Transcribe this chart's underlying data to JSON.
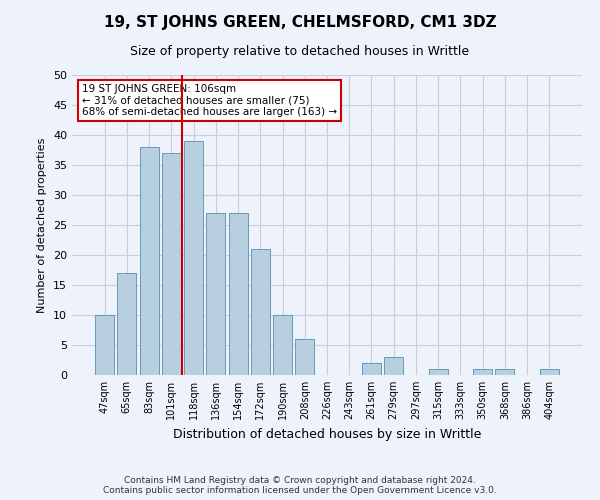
{
  "title": "19, ST JOHNS GREEN, CHELMSFORD, CM1 3DZ",
  "subtitle": "Size of property relative to detached houses in Writtle",
  "xlabel": "Distribution of detached houses by size in Writtle",
  "ylabel": "Number of detached properties",
  "categories": [
    "47sqm",
    "65sqm",
    "83sqm",
    "101sqm",
    "118sqm",
    "136sqm",
    "154sqm",
    "172sqm",
    "190sqm",
    "208sqm",
    "226sqm",
    "243sqm",
    "261sqm",
    "279sqm",
    "297sqm",
    "315sqm",
    "333sqm",
    "350sqm",
    "368sqm",
    "386sqm",
    "404sqm"
  ],
  "values": [
    10,
    17,
    38,
    37,
    39,
    27,
    27,
    21,
    10,
    6,
    0,
    0,
    2,
    3,
    0,
    1,
    0,
    1,
    1,
    0,
    1
  ],
  "bar_color": "#b8cfe0",
  "bar_edge_color": "#6699bb",
  "ylim": [
    0,
    50
  ],
  "yticks": [
    0,
    5,
    10,
    15,
    20,
    25,
    30,
    35,
    40,
    45,
    50
  ],
  "vline_x_index": 3.5,
  "vline_color": "#cc0000",
  "annotation_text": "19 ST JOHNS GREEN: 106sqm\n← 31% of detached houses are smaller (75)\n68% of semi-detached houses are larger (163) →",
  "annotation_box_color": "#ffffff",
  "annotation_box_edge": "#cc0000",
  "footer_line1": "Contains HM Land Registry data © Crown copyright and database right 2024.",
  "footer_line2": "Contains public sector information licensed under the Open Government Licence v3.0.",
  "background_color": "#eef2fa",
  "plot_bg_color": "#eef2fa",
  "grid_color": "#c5cfe0"
}
